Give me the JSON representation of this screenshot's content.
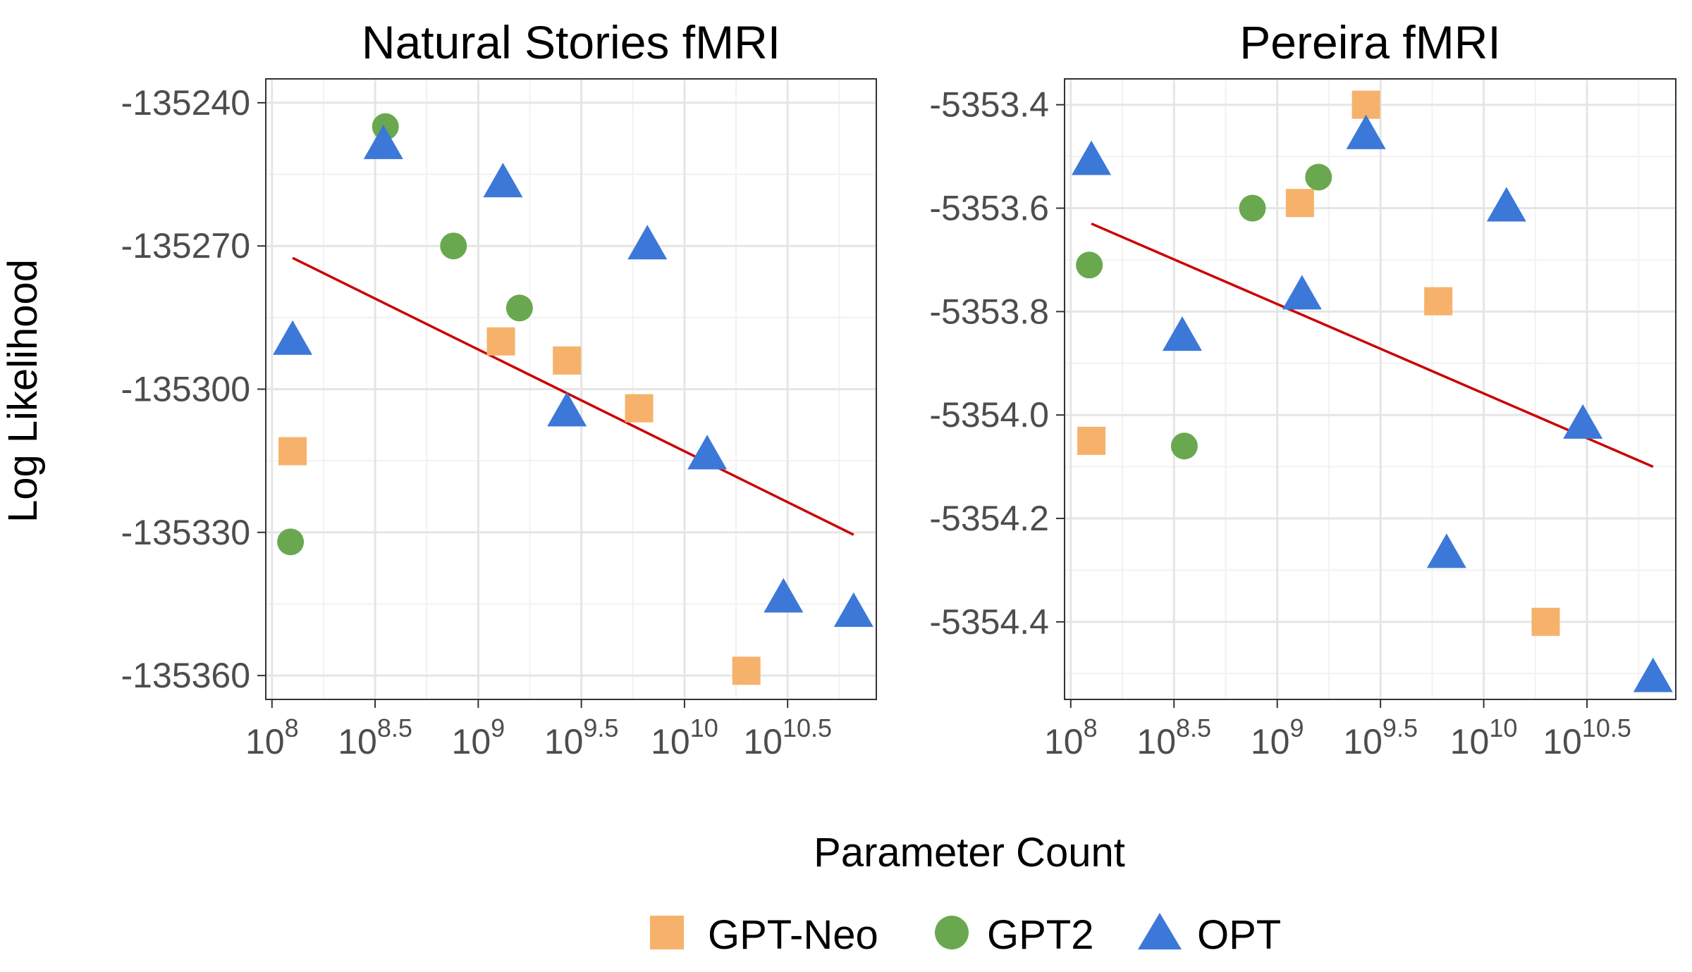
{
  "chart_data": [
    {
      "type": "scatter",
      "title": "Natural Stories fMRI",
      "xlabel": "Parameter Count",
      "ylabel": "Log Likelihood",
      "xscale": "log10",
      "xlim": [
        7.97,
        10.93
      ],
      "ylim": [
        -135365,
        -135235
      ],
      "yticks": [
        -135240,
        -135270,
        -135300,
        -135330,
        -135360
      ],
      "ytick_labels": [
        "-135240",
        "-135270",
        "-135300",
        "-135330",
        "-135360"
      ],
      "xticks": [
        8,
        8.5,
        9,
        9.5,
        10,
        10.5
      ],
      "xtick_labels": [
        {
          "base": "10",
          "exp": "8"
        },
        {
          "base": "10",
          "exp": "8.5"
        },
        {
          "base": "10",
          "exp": "9"
        },
        {
          "base": "10",
          "exp": "9.5"
        },
        {
          "base": "10",
          "exp": "10"
        },
        {
          "base": "10",
          "exp": "10.5"
        }
      ],
      "series": [
        {
          "name": "GPT-Neo",
          "marker": "square",
          "color": "#F6B26B",
          "x": [
            8.1,
            9.11,
            9.43,
            9.78,
            10.3
          ],
          "y": [
            -135313,
            -135290,
            -135294,
            -135304,
            -135359
          ]
        },
        {
          "name": "GPT2",
          "marker": "circle",
          "color": "#6AA84F",
          "x": [
            8.09,
            8.55,
            8.88,
            9.2
          ],
          "y": [
            -135332,
            -135245,
            -135270,
            -135283
          ]
        },
        {
          "name": "OPT",
          "marker": "triangle",
          "color": "#3C78D8",
          "x": [
            8.1,
            8.54,
            9.12,
            9.43,
            9.82,
            10.11,
            10.48,
            10.82
          ],
          "y": [
            -135290,
            -135249,
            -135257,
            -135305,
            -135270,
            -135314,
            -135344,
            -135347
          ]
        }
      ],
      "fit_line": {
        "color": "#CC0000",
        "x": [
          8.1,
          10.82
        ],
        "y": [
          -135272.5,
          -135330.5
        ]
      }
    },
    {
      "type": "scatter",
      "title": "Pereira fMRI",
      "xlabel": "Parameter Count",
      "ylabel": "Log Likelihood",
      "xscale": "log10",
      "xlim": [
        7.97,
        10.93
      ],
      "ylim": [
        -5354.55,
        -5353.35
      ],
      "yticks": [
        -5353.4,
        -5353.6,
        -5353.8,
        -5354.0,
        -5354.2,
        -5354.4
      ],
      "ytick_labels": [
        "-5353.4",
        "-5353.6",
        "-5353.8",
        "-5354.0",
        "-5354.2",
        "-5354.4"
      ],
      "xticks": [
        8,
        8.5,
        9,
        9.5,
        10,
        10.5
      ],
      "xtick_labels": [
        {
          "base": "10",
          "exp": "8"
        },
        {
          "base": "10",
          "exp": "8.5"
        },
        {
          "base": "10",
          "exp": "9"
        },
        {
          "base": "10",
          "exp": "9.5"
        },
        {
          "base": "10",
          "exp": "10"
        },
        {
          "base": "10",
          "exp": "10.5"
        }
      ],
      "series": [
        {
          "name": "GPT-Neo",
          "marker": "square",
          "color": "#F6B26B",
          "x": [
            8.1,
            9.11,
            9.43,
            9.78,
            10.3
          ],
          "y": [
            -5354.05,
            -5353.59,
            -5353.4,
            -5353.78,
            -5354.4
          ]
        },
        {
          "name": "GPT2",
          "marker": "circle",
          "color": "#6AA84F",
          "x": [
            8.09,
            8.55,
            8.88,
            9.2
          ],
          "y": [
            -5353.71,
            -5354.06,
            -5353.6,
            -5353.54
          ]
        },
        {
          "name": "OPT",
          "marker": "triangle",
          "color": "#3C78D8",
          "x": [
            8.1,
            8.54,
            9.12,
            9.43,
            9.82,
            10.11,
            10.48,
            10.82
          ],
          "y": [
            -5353.51,
            -5353.85,
            -5353.77,
            -5353.46,
            -5354.27,
            -5353.6,
            -5354.02,
            -5354.51
          ]
        }
      ],
      "fit_line": {
        "color": "#CC0000",
        "x": [
          8.1,
          10.82
        ],
        "y": [
          -5353.63,
          -5354.1
        ]
      }
    }
  ],
  "shared": {
    "xlabel": "Parameter Count",
    "ylabel": "Log Likelihood",
    "legend_position": "bottom",
    "legend": [
      {
        "label": "GPT-Neo",
        "marker": "square",
        "color": "#F6B26B"
      },
      {
        "label": "GPT2",
        "marker": "circle",
        "color": "#6AA84F"
      },
      {
        "label": "OPT",
        "marker": "triangle",
        "color": "#3C78D8"
      }
    ]
  }
}
